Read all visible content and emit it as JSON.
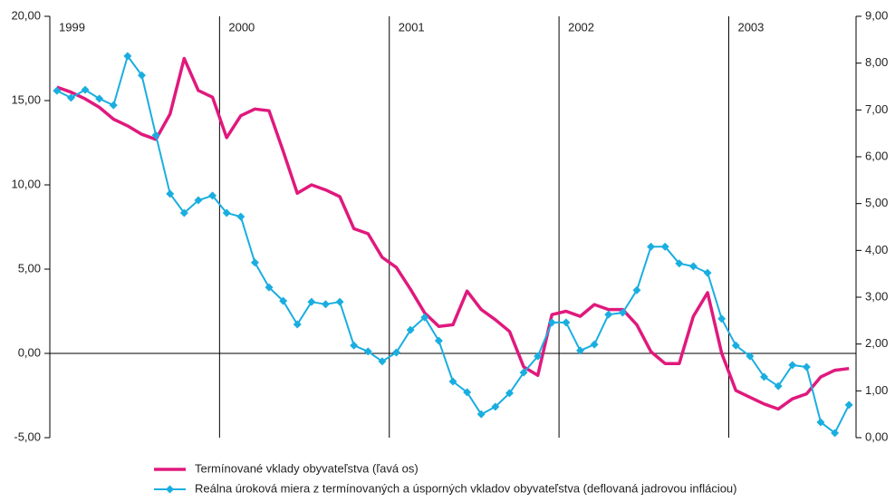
{
  "chart_data": {
    "type": "line",
    "years": [
      "1999",
      "2000",
      "2001",
      "2002",
      "2003"
    ],
    "xlim": [
      -0.5,
      56.5
    ],
    "ylim": [
      -5,
      20
    ],
    "yticks": [
      {
        "value": -5,
        "label": "-5,00"
      },
      {
        "value": 0,
        "label": "0,00"
      },
      {
        "value": 5,
        "label": "5,00"
      },
      {
        "value": 10,
        "label": "10,00"
      },
      {
        "value": 15,
        "label": "15,00"
      },
      {
        "value": 20,
        "label": "20,00"
      }
    ],
    "y2lim": [
      0,
      9
    ],
    "y2ticks": [
      {
        "value": 0,
        "label": "0,00"
      },
      {
        "value": 1,
        "label": "1,00"
      },
      {
        "value": 2,
        "label": "2,00"
      },
      {
        "value": 3,
        "label": "3,00"
      },
      {
        "value": 4,
        "label": "4,00"
      },
      {
        "value": 5,
        "label": "5,00"
      },
      {
        "value": 6,
        "label": "6,00"
      },
      {
        "value": 7,
        "label": "7,00"
      },
      {
        "value": 8,
        "label": "8,00"
      },
      {
        "value": 9,
        "label": "9,00"
      }
    ],
    "series": [
      {
        "name": "Termínované vklady obyvateľstva (ľavá os)",
        "color": "#e0197d",
        "axis": "y",
        "values": [
          15.8,
          15.5,
          15.1,
          14.6,
          13.9,
          13.5,
          13.0,
          12.7,
          14.2,
          17.5,
          15.6,
          15.2,
          12.8,
          14.1,
          14.5,
          14.4,
          12.0,
          9.5,
          10.0,
          9.7,
          9.3,
          7.4,
          7.1,
          5.7,
          5.1,
          3.8,
          2.4,
          1.6,
          1.7,
          3.7,
          2.6,
          2.0,
          1.3,
          -0.8,
          -1.3,
          2.3,
          2.5,
          2.2,
          2.9,
          2.6,
          2.6,
          1.7,
          0.1,
          -0.6,
          -0.6,
          2.2,
          3.6,
          0.0,
          -2.2,
          -2.6,
          -3.0,
          -3.3,
          -2.7,
          -2.4,
          -1.4,
          -1.0,
          -0.9
        ]
      },
      {
        "name": "Reálna úroková miera z termínovaných a úsporných vkladov obyvateľstva (deflovaná jadrovou infláciou)",
        "color": "#1aaee0",
        "axis": "y2",
        "values": [
          7.41,
          7.26,
          7.43,
          7.24,
          7.1,
          8.15,
          7.74,
          6.46,
          5.21,
          4.8,
          5.07,
          5.17,
          4.8,
          4.72,
          3.74,
          3.21,
          2.92,
          2.42,
          2.9,
          2.85,
          2.9,
          1.97,
          1.84,
          1.63,
          1.82,
          2.3,
          2.57,
          2.07,
          1.2,
          0.97,
          0.5,
          0.66,
          0.95,
          1.39,
          1.74,
          2.46,
          2.46,
          1.86,
          1.99,
          2.63,
          2.67,
          3.15,
          4.08,
          4.08,
          3.72,
          3.66,
          3.52,
          2.54,
          1.97,
          1.74,
          1.3,
          1.1,
          1.55,
          1.51,
          0.33,
          0.1,
          0.7
        ]
      }
    ]
  }
}
